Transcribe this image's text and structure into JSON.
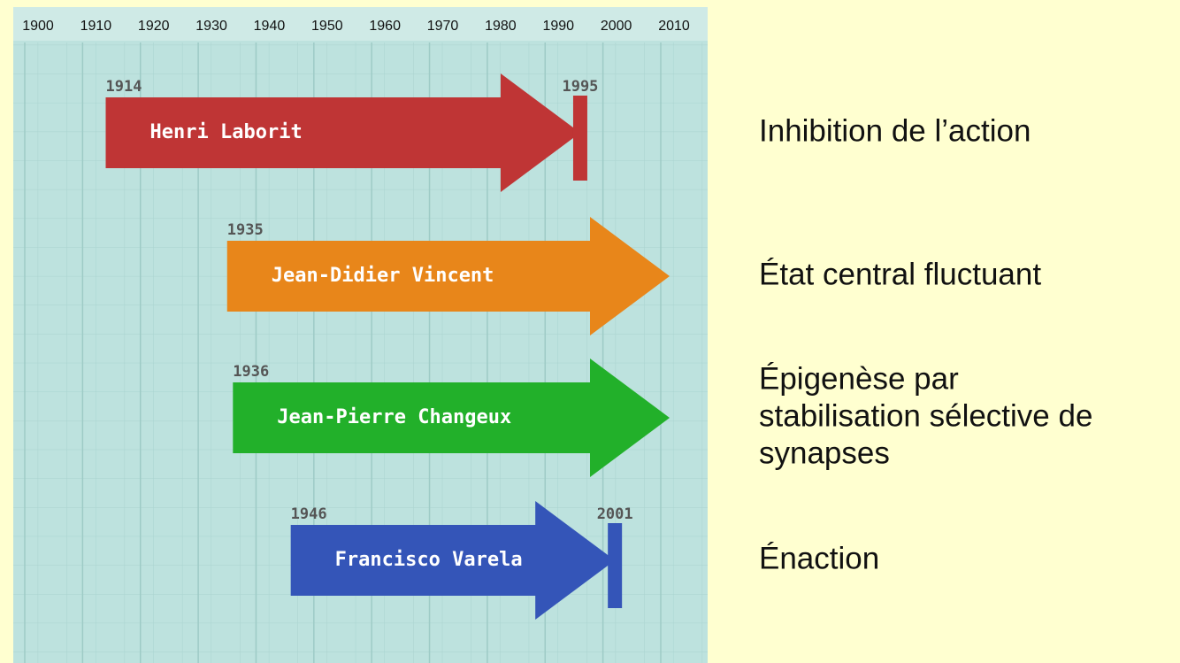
{
  "chart_data": {
    "type": "timeline",
    "xlim": [
      1900,
      2010
    ],
    "xticks": [
      1900,
      1910,
      1920,
      1930,
      1940,
      1950,
      1960,
      1970,
      1980,
      1990,
      2000,
      2010
    ],
    "grid": true,
    "series": [
      {
        "name": "Henri Laborit",
        "start": 1914,
        "end": 1995,
        "color": "#bf3535",
        "concept": [
          "Inhibition de l’action"
        ]
      },
      {
        "name": "Jean-Didier Vincent",
        "start": 1935,
        "end": null,
        "color": "#e8861a",
        "concept": [
          "État central fluctuant"
        ]
      },
      {
        "name": "Jean-Pierre Changeux",
        "start": 1936,
        "end": null,
        "color": "#22b02a",
        "concept": [
          "Épigenèse par",
          "stabilisation sélective de",
          "synapses"
        ]
      },
      {
        "name": "Francisco Varela",
        "start": 1946,
        "end": 2001,
        "color": "#3455b8",
        "concept": [
          "Énaction"
        ]
      }
    ]
  }
}
